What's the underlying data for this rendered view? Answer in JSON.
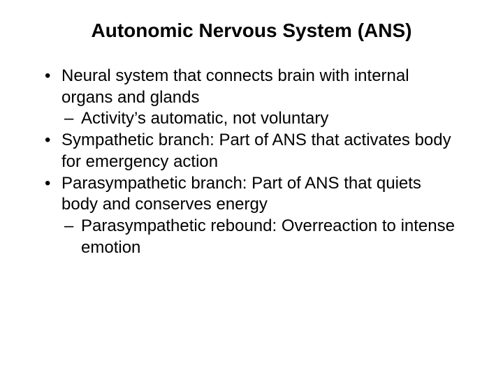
{
  "type": "slide",
  "background_color": "#ffffff",
  "text_color": "#000000",
  "font_family": "Arial",
  "title": {
    "text": "Autonomic Nervous System (ANS)",
    "fontsize": 28,
    "weight": "bold",
    "align": "center"
  },
  "body_fontsize": 24,
  "bullets": [
    {
      "text": "Neural system that connects brain with internal organs and glands",
      "sub": [
        {
          "text": "Activity’s automatic, not voluntary"
        }
      ]
    },
    {
      "text": "Sympathetic branch: Part of ANS that activates body for emergency action",
      "sub": []
    },
    {
      "text": "Parasympathetic branch: Part of ANS that quiets body and conserves energy",
      "sub": [
        {
          "text": "Parasympathetic rebound: Overreaction to intense emotion"
        }
      ]
    }
  ]
}
